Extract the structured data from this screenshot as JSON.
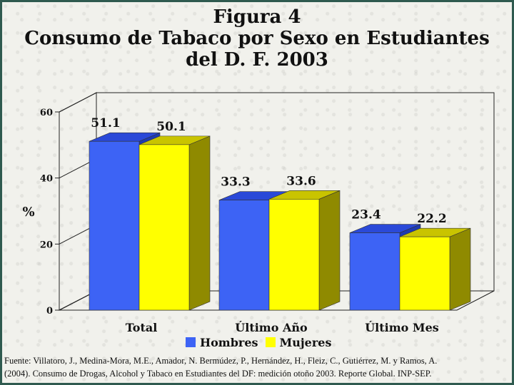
{
  "title_lines": [
    "Figura 4",
    "Consumo de Tabaco por Sexo en Estudiantes",
    "del D. F. 2003"
  ],
  "colors": {
    "hombres": "#3d63f5",
    "mujeres": "#ffff00",
    "hombres_side": "#1f3bb0",
    "mujeres_side": "#8f8a00",
    "hombres_top": "#2a49d8",
    "mujeres_top": "#c9c400"
  },
  "chart_data": {
    "type": "bar",
    "title": "Consumo de Tabaco por Sexo en Estudiantes del D. F. 2003",
    "categories": [
      "Total",
      "Último Año",
      "Último Mes"
    ],
    "series": [
      {
        "name": "Hombres",
        "values": [
          51.1,
          33.3,
          23.4
        ]
      },
      {
        "name": "Mujeres",
        "values": [
          50.1,
          33.6,
          22.2
        ]
      }
    ],
    "data_labels": [
      [
        "51.1",
        "33.3",
        "23.4"
      ],
      [
        "50.1",
        "33.6",
        "22.2"
      ]
    ],
    "ylabel": "%",
    "ylim": [
      0,
      60
    ],
    "yticks": [
      "0",
      "20",
      "40",
      "60"
    ],
    "grid": false,
    "legend": "bottom"
  },
  "source_lines": [
    "Fuente: Villatoro, J., Medina-Mora, M.E., Amador, N. Bermúdez, P., Hernández, H., Fleiz, C., Gutiérrez, M. y Ramos, A.",
    "(2004). Consumo de Drogas, Alcohol y Tabaco en Estudiantes del DF: medición otoño 2003. Reporte Global. INP-SEP."
  ]
}
